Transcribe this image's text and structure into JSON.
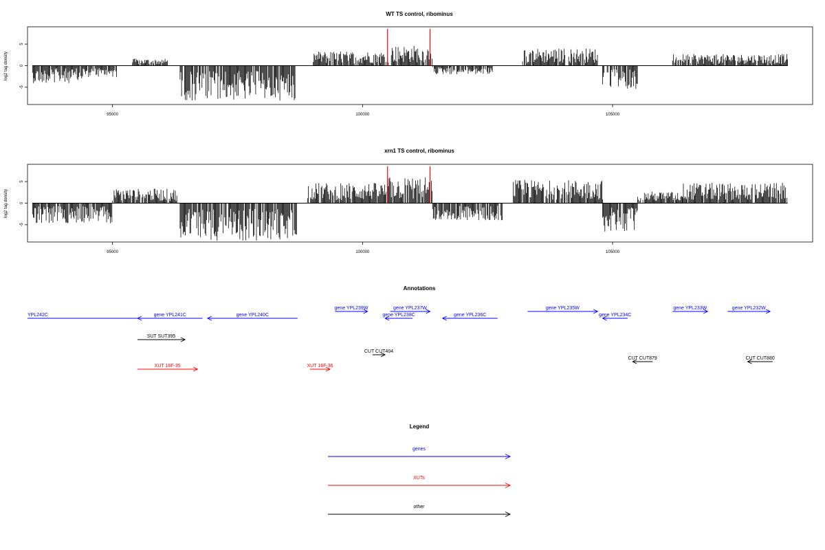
{
  "chart_data": [
    {
      "type": "bar",
      "title": "WT TS control, ribominus",
      "ylabel": "log2 tag density",
      "xlim": [
        93300,
        109000
      ],
      "ylim": [
        -9,
        9
      ],
      "xticks": [
        95000,
        100000,
        105000
      ],
      "yticks": [
        -5,
        0,
        5
      ],
      "xtick_labels": [
        "95000",
        "100000",
        "105000"
      ],
      "ytick_labels": [
        "-5",
        "0",
        "5"
      ],
      "highlight_lines": [
        100500,
        101350
      ],
      "bar_color": "#000000",
      "highlight_color": "#ff0000",
      "segments": [
        {
          "x": [
            93400,
            94400
          ],
          "level": -3.0,
          "sign": -1
        },
        {
          "x": [
            94400,
            95100
          ],
          "level": -2.0,
          "sign": -1
        },
        {
          "x": [
            95400,
            96100
          ],
          "level": 1.2,
          "sign": 1
        },
        {
          "x": [
            96350,
            98650
          ],
          "level": -6.0,
          "sign": -1
        },
        {
          "x": [
            99000,
            100500
          ],
          "level": 2.5,
          "sign": 1
        },
        {
          "x": [
            100500,
            101400
          ],
          "level": 3.5,
          "sign": 1
        },
        {
          "x": [
            101400,
            102600
          ],
          "level": -1.5,
          "sign": -1
        },
        {
          "x": [
            103200,
            104700
          ],
          "level": 3.0,
          "sign": 1
        },
        {
          "x": [
            104800,
            105500
          ],
          "level": -4.0,
          "sign": -1
        },
        {
          "x": [
            106200,
            108500
          ],
          "level": 2.0,
          "sign": 1
        }
      ]
    },
    {
      "type": "bar",
      "title": "xrn1 TS control, ribominus",
      "ylabel": "log2 tag density",
      "xlim": [
        93300,
        109000
      ],
      "ylim": [
        -9,
        9
      ],
      "xticks": [
        95000,
        100000,
        105000
      ],
      "yticks": [
        -5,
        0,
        5
      ],
      "xtick_labels": [
        "95000",
        "100000",
        "105000"
      ],
      "ytick_labels": [
        "-5",
        "0",
        "5"
      ],
      "highlight_lines": [
        100500,
        101350
      ],
      "bar_color": "#000000",
      "highlight_color": "#ff0000",
      "segments": [
        {
          "x": [
            93400,
            95000
          ],
          "level": -3.5,
          "sign": -1
        },
        {
          "x": [
            95000,
            96300
          ],
          "level": 2.5,
          "sign": 1
        },
        {
          "x": [
            96350,
            98700
          ],
          "level": -6.5,
          "sign": -1
        },
        {
          "x": [
            98900,
            100500
          ],
          "level": 3.5,
          "sign": 1
        },
        {
          "x": [
            100500,
            101400
          ],
          "level": 4.5,
          "sign": 1
        },
        {
          "x": [
            101400,
            102800
          ],
          "level": -3.0,
          "sign": -1
        },
        {
          "x": [
            103000,
            104800
          ],
          "level": 4.0,
          "sign": 1
        },
        {
          "x": [
            104800,
            105500
          ],
          "level": -5.0,
          "sign": -1
        },
        {
          "x": [
            105500,
            106400
          ],
          "level": 2.0,
          "sign": 1
        },
        {
          "x": [
            106400,
            108500
          ],
          "level": 3.5,
          "sign": 1
        }
      ]
    }
  ],
  "annotations": {
    "title": "Annotations",
    "colors": {
      "gene": "#0000ff",
      "xut": "#ff0000",
      "other": "#000000"
    },
    "features": [
      {
        "label": "YPL242C",
        "x": [
          93300,
          95500
        ],
        "dir": "none",
        "color": "gene",
        "row": 2
      },
      {
        "label": "gene YPL241C",
        "x": [
          95500,
          96800
        ],
        "dir": "left",
        "color": "gene",
        "row": 2
      },
      {
        "label": "gene YPL240C",
        "x": [
          96900,
          98700
        ],
        "dir": "left",
        "color": "gene",
        "row": 2
      },
      {
        "label": "gene YPL239W",
        "x": [
          99450,
          100100
        ],
        "dir": "right",
        "color": "gene",
        "row": 1
      },
      {
        "label": "gene YPL238C",
        "x": [
          100450,
          101000
        ],
        "dir": "left",
        "color": "gene",
        "row": 2
      },
      {
        "label": "gene YPL237W",
        "x": [
          100550,
          101350
        ],
        "dir": "right",
        "color": "gene",
        "row": 1
      },
      {
        "label": "gene YPL236C",
        "x": [
          101600,
          102700
        ],
        "dir": "left",
        "color": "gene",
        "row": 2
      },
      {
        "label": "gene YPL235W",
        "x": [
          103300,
          104700
        ],
        "dir": "right",
        "color": "gene",
        "row": 1
      },
      {
        "label": "gene YPL234C",
        "x": [
          104800,
          105300
        ],
        "dir": "left",
        "color": "gene",
        "row": 2
      },
      {
        "label": "gene YPL233W",
        "x": [
          106200,
          106900
        ],
        "dir": "right",
        "color": "gene",
        "row": 1
      },
      {
        "label": "gene YPL232W",
        "x": [
          107300,
          108150
        ],
        "dir": "right",
        "color": "gene",
        "row": 1
      },
      {
        "label": "SUT SUT395",
        "x": [
          95500,
          96450
        ],
        "dir": "right",
        "color": "other",
        "row": 3
      },
      {
        "label": "CUT CUT404",
        "x": [
          100200,
          100450
        ],
        "dir": "right",
        "color": "other",
        "row": 4
      },
      {
        "label": "CUT CUT879",
        "x": [
          105400,
          105800
        ],
        "dir": "left",
        "color": "other",
        "row": 5
      },
      {
        "label": "CUT CUT880",
        "x": [
          107700,
          108200
        ],
        "dir": "left",
        "color": "other",
        "row": 5
      },
      {
        "label": "XUT 16F-35",
        "x": [
          95500,
          96700
        ],
        "dir": "right",
        "color": "xut",
        "row": 6
      },
      {
        "label": "XUT 16F-36",
        "x": [
          98950,
          99350
        ],
        "dir": "right",
        "color": "xut",
        "row": 6
      }
    ]
  },
  "legend": {
    "title": "Legend",
    "items": [
      {
        "label": "genes",
        "color": "#0000ff"
      },
      {
        "label": "XUTs",
        "color": "#ff0000"
      },
      {
        "label": "other",
        "color": "#000000"
      }
    ]
  }
}
